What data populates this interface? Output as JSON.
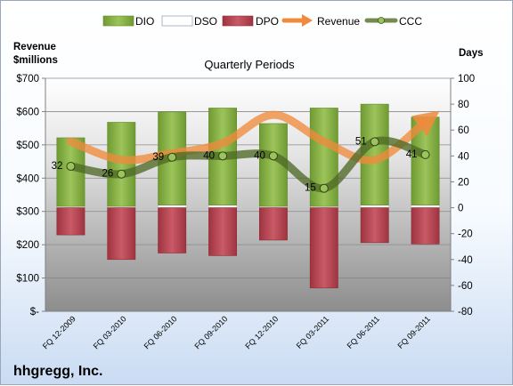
{
  "chart_data": {
    "type": "bar",
    "title": "Quarterly Periods",
    "company": "hhgregg, Inc.",
    "left_axis": {
      "label_line1": "Revenue",
      "label_line2": "$millions",
      "ticks": [
        "$-",
        "$100",
        "$200",
        "$300",
        "$400",
        "$500",
        "$600",
        "$700"
      ],
      "ylim": [
        0,
        700
      ]
    },
    "right_axis": {
      "label": "Days",
      "ticks": [
        "-80",
        "-60",
        "-40",
        "-20",
        "0",
        "20",
        "40",
        "60",
        "80",
        "100"
      ],
      "ylim": [
        -80,
        100
      ]
    },
    "categories": [
      "FQ 12-2009",
      "FQ 03-2010",
      "FQ 06-2010",
      "FQ 09-2010",
      "FQ 12-2010",
      "FQ 03-2011",
      "FQ 06-2011",
      "FQ 09-2011"
    ],
    "legend": {
      "position": "top",
      "entries": [
        {
          "label": "DIO",
          "color": "#77a33b"
        },
        {
          "label": "DSO",
          "color": "#ffffff"
        },
        {
          "label": "DPO",
          "color": "#b8434f"
        },
        {
          "label": "Revenue",
          "color": "#f08a3c"
        },
        {
          "label": "CCC",
          "color": "#5c7530"
        }
      ]
    },
    "series": [
      {
        "name": "DIO",
        "axis": "days",
        "values": [
          53,
          65,
          72,
          75,
          64,
          76,
          78,
          68
        ]
      },
      {
        "name": "DSO",
        "axis": "days",
        "values": [
          1,
          1,
          2,
          2,
          1,
          1,
          2,
          2
        ]
      },
      {
        "name": "DPO",
        "axis": "days",
        "values": [
          -21,
          -40,
          -35,
          -37,
          -25,
          -62,
          -27,
          -28
        ]
      },
      {
        "name": "Revenue",
        "axis": "revenue",
        "values": [
          510,
          455,
          475,
          505,
          590,
          510,
          455,
          570
        ]
      },
      {
        "name": "CCC",
        "axis": "days",
        "values": [
          32,
          26,
          39,
          40,
          40,
          15,
          51,
          41
        ],
        "data_labels": [
          "32",
          "26",
          "39",
          "40",
          "40",
          "15",
          "51",
          "41"
        ]
      }
    ],
    "grid": true
  }
}
